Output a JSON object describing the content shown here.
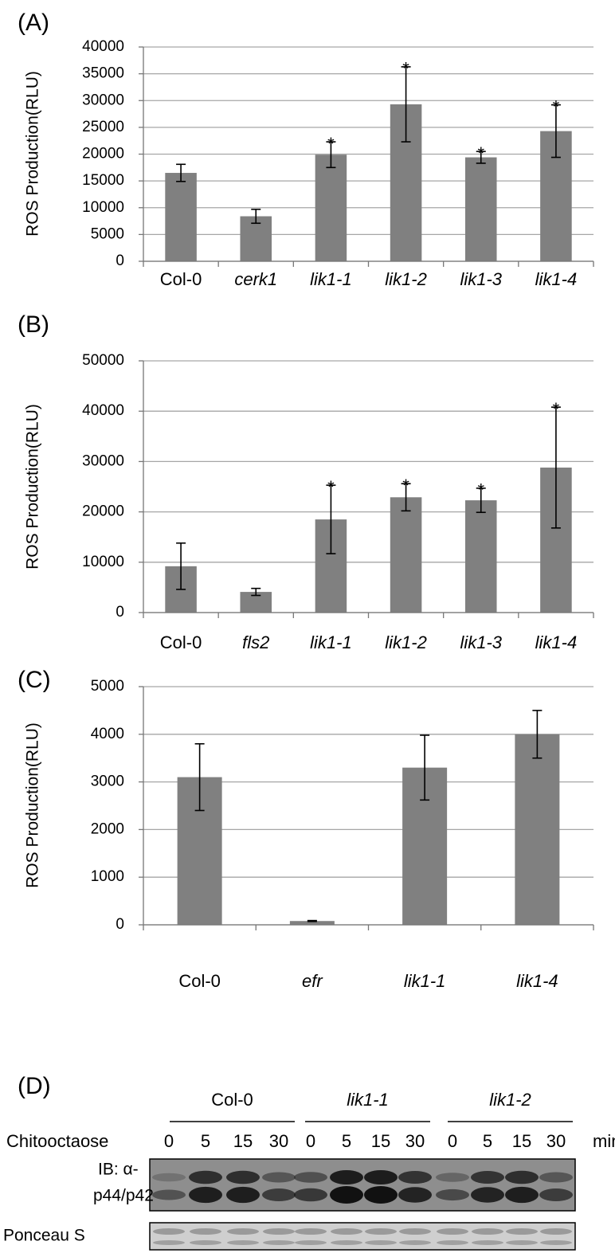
{
  "chart_data": [
    {
      "type": "bar",
      "panel": "(A)",
      "y_label": "ROS Production(RLU)",
      "categories": [
        "Col-0",
        "cerk1",
        "lik1-1",
        "lik1-2",
        "lik1-3",
        "lik1-4"
      ],
      "italic_categories": [
        false,
        true,
        true,
        true,
        true,
        true
      ],
      "values": [
        16500,
        8400,
        19900,
        29300,
        19400,
        24300
      ],
      "errors": [
        1600,
        1300,
        2400,
        7000,
        1100,
        4900
      ],
      "significance": [
        null,
        null,
        "*",
        "*",
        "*",
        "*"
      ],
      "color": "#808080",
      "ylim": [
        0,
        40000
      ],
      "yticks": [
        0,
        5000,
        10000,
        15000,
        20000,
        25000,
        30000,
        35000,
        40000
      ],
      "grid": true
    },
    {
      "type": "bar",
      "panel": "(B)",
      "y_label": "ROS Production(RLU)",
      "categories": [
        "Col-0",
        "fls2",
        "lik1-1",
        "lik1-2",
        "lik1-3",
        "lik1-4"
      ],
      "italic_categories": [
        false,
        true,
        true,
        true,
        true,
        true
      ],
      "values": [
        9200,
        4100,
        18500,
        22900,
        22300,
        28800
      ],
      "errors": [
        4600,
        700,
        6800,
        2700,
        2400,
        12000
      ],
      "significance": [
        null,
        null,
        "*",
        "*",
        "*",
        "*"
      ],
      "color": "#808080",
      "ylim": [
        0,
        50000
      ],
      "yticks": [
        0,
        10000,
        20000,
        30000,
        40000,
        50000
      ],
      "grid": true
    },
    {
      "type": "bar",
      "panel": "(C)",
      "y_label": "ROS Production(RLU)",
      "categories": [
        "Col-0",
        "efr",
        "lik1-1",
        "lik1-4"
      ],
      "italic_categories": [
        false,
        true,
        true,
        true
      ],
      "values": [
        3100,
        80,
        3300,
        4000
      ],
      "errors": [
        700,
        10,
        680,
        500
      ],
      "significance": [
        null,
        null,
        null,
        null
      ],
      "color": "#808080",
      "ylim": [
        0,
        5000
      ],
      "yticks": [
        0,
        1000,
        2000,
        3000,
        4000,
        5000
      ],
      "grid": true
    }
  ],
  "blot": {
    "panel": "(D)",
    "treatment": "Chitooctaose",
    "unit": "min",
    "groups": [
      {
        "name": "Col-0",
        "italic": false,
        "times": [
          "0",
          "5",
          "15",
          "30"
        ]
      },
      {
        "name": "lik1-1",
        "italic": true,
        "times": [
          "0",
          "5",
          "15",
          "30"
        ]
      },
      {
        "name": "lik1-2",
        "italic": true,
        "times": [
          "0",
          "5",
          "15",
          "30"
        ]
      }
    ],
    "rows": [
      [
        "IB: α-",
        "p44/p42"
      ],
      [
        "Ponceau S"
      ]
    ]
  }
}
